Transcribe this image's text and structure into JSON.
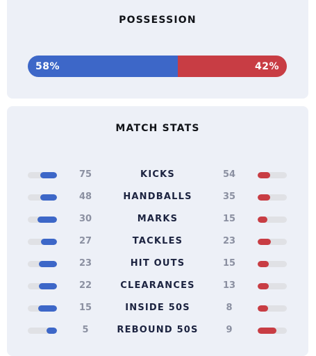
{
  "possession": {
    "title": "POSSESSION",
    "home_label": "58%",
    "away_label": "42%",
    "home_share": 0.58,
    "home_color": "#3d67c8",
    "away_color": "#c83d44"
  },
  "match_stats": {
    "title": "MATCH STATS",
    "rows": [
      {
        "label": "KICKS",
        "home": "75",
        "away": "54",
        "home_fill": 0.58,
        "away_fill": 0.42
      },
      {
        "label": "HANDBALLS",
        "home": "48",
        "away": "35",
        "home_fill": 0.58,
        "away_fill": 0.42
      },
      {
        "label": "MARKS",
        "home": "30",
        "away": "15",
        "home_fill": 0.67,
        "away_fill": 0.33
      },
      {
        "label": "TACKLES",
        "home": "27",
        "away": "23",
        "home_fill": 0.54,
        "away_fill": 0.46
      },
      {
        "label": "HIT OUTS",
        "home": "23",
        "away": "15",
        "home_fill": 0.61,
        "away_fill": 0.39
      },
      {
        "label": "CLEARANCES",
        "home": "22",
        "away": "13",
        "home_fill": 0.63,
        "away_fill": 0.37
      },
      {
        "label": "INSIDE 50S",
        "home": "15",
        "away": "8",
        "home_fill": 0.65,
        "away_fill": 0.35
      },
      {
        "label": "REBOUND 50S",
        "home": "5",
        "away": "9",
        "home_fill": 0.36,
        "away_fill": 0.64
      }
    ]
  }
}
